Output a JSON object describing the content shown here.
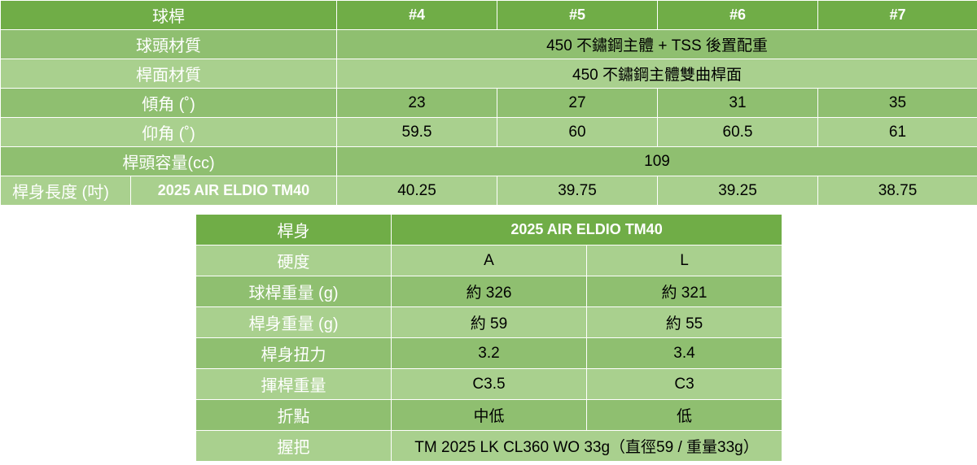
{
  "spec_table": {
    "header": {
      "label": "球桿",
      "models": [
        "#4",
        "#5",
        "#6",
        "#7"
      ]
    },
    "head_material": {
      "label": "球頭材質",
      "value": "450 不鏽鋼主體 + TSS 後置配重"
    },
    "face_material": {
      "label": "桿面材質",
      "value": "450 不鏽鋼主體雙曲桿面"
    },
    "loft": {
      "label": "傾角 (˚)",
      "values": [
        "23",
        "27",
        "31",
        "35"
      ]
    },
    "lie": {
      "label": "仰角 (˚)",
      "values": [
        "59.5",
        "60",
        "60.5",
        "61"
      ]
    },
    "volume": {
      "label": "桿頭容量(cc)",
      "value": "109"
    },
    "length": {
      "label": "桿身長度 (吋)",
      "shaft": "2025 AIR ELDIO TM40",
      "values": [
        "40.25",
        "39.75",
        "39.25",
        "38.75"
      ]
    }
  },
  "shaft_table": {
    "header": {
      "label": "桿身",
      "value": "2025 AIR ELDIO TM40"
    },
    "flex": {
      "label": "硬度",
      "values": [
        "A",
        "L"
      ]
    },
    "club_weight": {
      "label": "球桿重量 (g)",
      "values": [
        "約 326",
        "約 321"
      ]
    },
    "shaft_weight": {
      "label": "桿身重量 (g)",
      "values": [
        "約 59",
        "約 55"
      ]
    },
    "torque": {
      "label": "桿身扭力",
      "values": [
        "3.2",
        "3.4"
      ]
    },
    "swing_weight": {
      "label": "揮桿重量",
      "values": [
        "C3.5",
        "C3"
      ]
    },
    "kick_point": {
      "label": "折點",
      "values": [
        "中低",
        "低"
      ]
    },
    "grip": {
      "label": "握把",
      "value": "TM 2025 LK CL360 WO 33g（直徑59 / 重量33g）"
    }
  }
}
